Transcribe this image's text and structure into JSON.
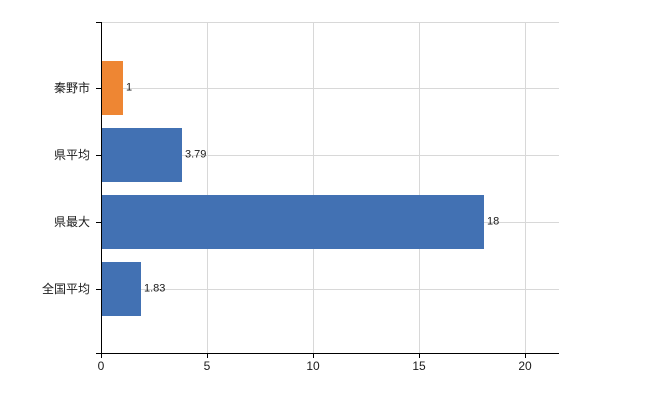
{
  "chart_data": {
    "type": "bar",
    "orientation": "horizontal",
    "title": "",
    "xlabel": "",
    "ylabel": "",
    "categories": [
      "秦野市",
      "県平均",
      "県最大",
      "全国平均"
    ],
    "values": [
      1,
      3.79,
      18,
      1.83
    ],
    "value_labels": [
      "1",
      "3.79",
      "18",
      "1.83"
    ],
    "bar_colors": [
      "#ee8633",
      "#4271b3",
      "#4271b3",
      "#4271b3"
    ],
    "xlim": [
      0,
      21.6
    ],
    "x_ticks": [
      0,
      5,
      10,
      15,
      20
    ],
    "x_tick_labels": [
      "0",
      "5",
      "10",
      "15",
      "20"
    ],
    "grid": "on",
    "legend": "none",
    "data_labels": "outside-end"
  },
  "colors": {
    "background": "#ffffff",
    "gridline": "#d8d8d8",
    "axis": "#000000",
    "text": "#1a1a1a",
    "orange": "#ee8633",
    "blue": "#4271b3"
  }
}
